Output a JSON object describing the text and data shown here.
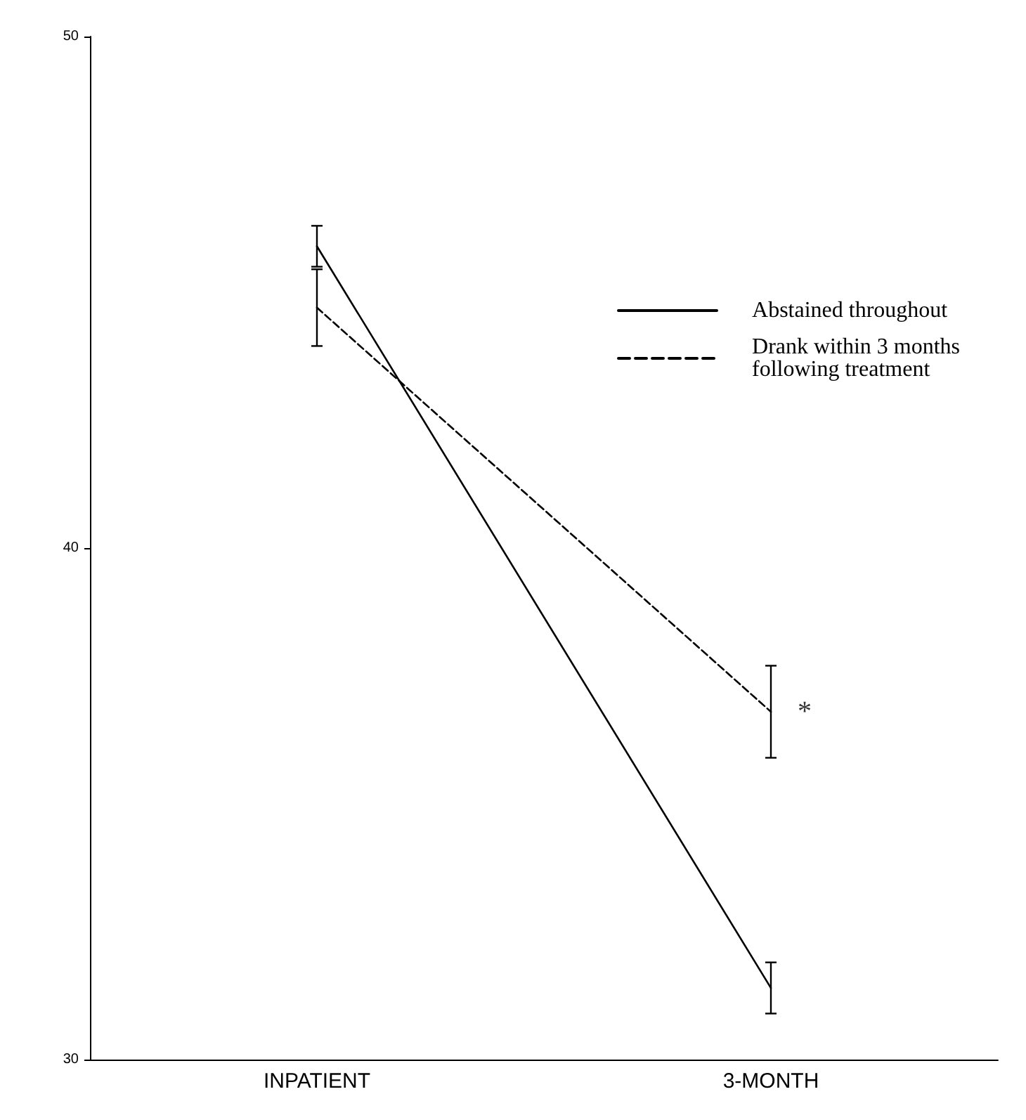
{
  "chart_data": {
    "type": "line",
    "categories": [
      "INPATIENT",
      "3-MONTH"
    ],
    "series": [
      {
        "name": "Abstained throughout",
        "color": "#000000",
        "line_style": "solid",
        "values": [
          45.9,
          31.4
        ],
        "errors": [
          0.4,
          0.5
        ]
      },
      {
        "name": "Drank within 3 months following treatment",
        "color": "#000000",
        "line_style": "dashed",
        "values": [
          44.7,
          36.8
        ],
        "errors": [
          0.75,
          0.9
        ]
      }
    ],
    "ylim": [
      30,
      50
    ],
    "yticks": [
      30,
      40,
      50
    ],
    "grid": false,
    "legend": "top right",
    "marker": "none",
    "annotations": [
      {
        "text": "*",
        "x": "3-MONTH",
        "y": 36.8
      }
    ]
  }
}
